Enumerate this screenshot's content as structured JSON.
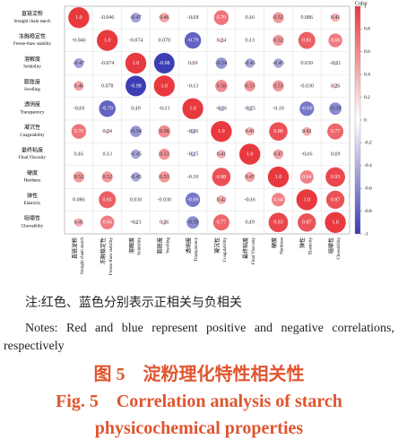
{
  "chart_data": {
    "type": "correlation",
    "categories": [
      "直链淀粉",
      "冻融稳定性",
      "溶解度",
      "膨胀度",
      "透明度",
      "凝沉性",
      "最终粘度",
      "硬度",
      "弹性",
      "咀嚼性"
    ],
    "categories_en": [
      "Straight chain starch",
      "Freeze-thaw stability",
      "Solubility",
      "Swelling",
      "Transparency",
      "Coagulability",
      "Final Viscosity",
      "Hardness",
      "Elasticity",
      "Chewability"
    ],
    "matrix": [
      [
        1.0,
        -0.046,
        -0.47,
        0.46,
        -0.18,
        0.7,
        0.16,
        0.52,
        0.086,
        0.41
      ],
      [
        -0.046,
        1.0,
        -0.074,
        0.078,
        -0.79,
        0.24,
        0.13,
        0.52,
        0.81,
        0.66
      ],
      [
        -0.47,
        -0.074,
        1.0,
        -0.98,
        0.19,
        -0.54,
        -0.45,
        -0.45,
        0.03,
        -0.21
      ],
      [
        0.46,
        0.078,
        -0.98,
        1.0,
        -0.13,
        0.58,
        0.53,
        0.53,
        -0.03,
        0.26
      ],
      [
        -0.18,
        -0.79,
        0.19,
        -0.13,
        1.0,
        -0.26,
        -0.25,
        -0.1,
        -0.69,
        -0.59
      ],
      [
        0.7,
        0.24,
        -0.54,
        0.58,
        -0.26,
        1.0,
        0.41,
        0.88,
        0.42,
        0.77
      ],
      [
        0.16,
        0.13,
        -0.45,
        0.53,
        -0.25,
        0.41,
        1.0,
        0.47,
        -0.16,
        0.19
      ],
      [
        0.52,
        0.52,
        -0.45,
        0.53,
        -0.1,
        0.88,
        0.47,
        1.0,
        0.64,
        0.93
      ],
      [
        0.086,
        0.81,
        0.03,
        -0.03,
        -0.69,
        0.42,
        -0.16,
        0.64,
        1.0,
        0.87
      ],
      [
        0.41,
        0.66,
        -0.21,
        0.26,
        -0.59,
        0.77,
        0.19,
        0.93,
        0.87,
        1.0
      ]
    ],
    "value_labels": [
      [
        "1.0",
        "-0.046",
        "-0.47",
        "0.46",
        "-0.18",
        "0.70",
        "0.16",
        "0.52",
        "0.086",
        "0.41"
      ],
      [
        "-0.046",
        "1.0",
        "-0.074",
        "0.078",
        "-0.79",
        "0.24",
        "0.13",
        "0.52",
        "0.81",
        "0.66"
      ],
      [
        "-0.47",
        "-0.074",
        "1.0",
        "-0.98",
        "0.19",
        "-0.54",
        "-0.45",
        "-0.45",
        "0.030",
        "-0.21"
      ],
      [
        "0.46",
        "0.078",
        "-0.98",
        "1.0",
        "-0.13",
        "0.58",
        "0.53",
        "0.53",
        "-0.030",
        "0.26"
      ],
      [
        "-0.18",
        "-0.79",
        "0.19",
        "-0.13",
        "1.0",
        "-0.26",
        "-0.25",
        "-0.10",
        "-0.69",
        "-0.59"
      ],
      [
        "0.70",
        "0.24",
        "-0.54",
        "0.58",
        "-0.26",
        "1.0",
        "0.41",
        "0.88",
        "0.42",
        "0.77"
      ],
      [
        "0.16",
        "0.13",
        "-0.45",
        "0.53",
        "-0.25",
        "0.41",
        "1.0",
        "0.47",
        "-0.16",
        "0.19"
      ],
      [
        "0.52",
        "0.52",
        "-0.45",
        "0.53",
        "-0.10",
        "0.88",
        "0.47",
        "1.0",
        "0.64",
        "0.93"
      ],
      [
        "0.086",
        "0.81",
        "0.030",
        "-0.030",
        "-0.69",
        "0.42",
        "-0.16",
        "0.64",
        "1.0",
        "0.87"
      ],
      [
        "0.41",
        "0.66",
        "-0.21",
        "0.26",
        "-0.59",
        "0.77",
        "0.19",
        "0.93",
        "0.87",
        "1.0"
      ]
    ],
    "positive_color": "#e8393f",
    "negative_color": "#3a3ab2",
    "colorbar": {
      "title": "Color",
      "lim": [
        -1,
        1
      ],
      "ticks": [
        1,
        0.8,
        0.6,
        0.4,
        0.2,
        0,
        -0.2,
        -0.4,
        -0.6,
        -0.8,
        -1
      ]
    }
  },
  "note_zh": "注:红色、蓝色分别表示正相关与负相关",
  "note_en": "Notes: Red and blue represent positive and negative correlations, respectively",
  "figure_title_zh": "图 5　淀粉理化特性相关性",
  "figure_title_en": "Fig. 5　Correlation analysis of starch physicochemical properties"
}
